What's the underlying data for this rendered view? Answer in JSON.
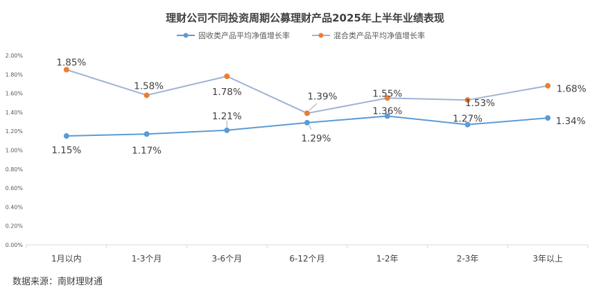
{
  "chart_data": {
    "type": "line",
    "title": "理财公司不同投资周期公募理财产品2025年上半年业绩表现",
    "categories": [
      "1月以内",
      "1-3个月",
      "3-6个月",
      "6-12个月",
      "1-2年",
      "2-3年",
      "3年以上"
    ],
    "series": [
      {
        "name": "固收类产品平均净值增长率",
        "values": [
          1.15,
          1.17,
          1.21,
          1.29,
          1.36,
          1.27,
          1.34
        ],
        "labels": [
          "1.15%",
          "1.17%",
          "1.21%",
          "1.29%",
          "1.36%",
          "1.27%",
          "1.34%"
        ],
        "line_color": "#5b9bd5",
        "marker_color": "#5b9bd5"
      },
      {
        "name": "混合类产品平均净值增长率",
        "values": [
          1.85,
          1.58,
          1.78,
          1.39,
          1.55,
          1.53,
          1.68
        ],
        "labels": [
          "1.85%",
          "1.58%",
          "1.78%",
          "1.39%",
          "1.55%",
          "1.53%",
          "1.68%"
        ],
        "line_color": "#9eb3d6",
        "marker_color": "#ed7d31"
      }
    ],
    "yticks": [
      "0.00%",
      "0.20%",
      "0.40%",
      "0.60%",
      "0.80%",
      "1.00%",
      "1.20%",
      "1.40%",
      "1.60%",
      "1.80%",
      "2.00%"
    ],
    "ylim": [
      0,
      2.0
    ],
    "grid": false,
    "legend_position": "top-center",
    "source": "数据来源：南财理财通"
  },
  "colors": {
    "axis": "#d9d9d9",
    "text": "#404040",
    "leader": "#a6a6a6"
  }
}
